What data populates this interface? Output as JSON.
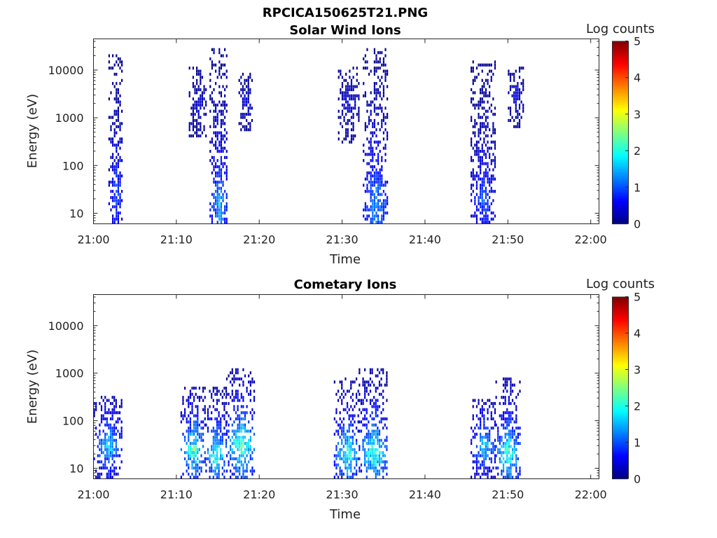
{
  "figure_title": "RPCICA150625T21.PNG",
  "chart_data": [
    {
      "type": "heatmap",
      "title": "Solar Wind Ions",
      "xlabel": "Time",
      "ylabel": "Energy (eV)",
      "x_ticks": [
        "21:00",
        "21:10",
        "21:20",
        "21:30",
        "21:40",
        "21:50",
        "22:00"
      ],
      "y_ticks": [
        "10",
        "100",
        "1000",
        "10000"
      ],
      "y_scale": "log",
      "ylim": [
        6,
        45000
      ],
      "xlim": [
        "21:00",
        "22:01"
      ],
      "colorbar": {
        "label": "Log counts",
        "ticks": [
          "0",
          "1",
          "2",
          "3",
          "4",
          "5"
        ],
        "range": [
          0,
          5
        ],
        "colormap": "jet"
      },
      "bursts": [
        {
          "start_min": 1.8,
          "end_min": 3.5,
          "e_low": 6,
          "e_high": 20000,
          "peak_log_counts": 1.3,
          "core_energy": 25
        },
        {
          "start_min": 11.5,
          "end_min": 13.5,
          "e_low": 400,
          "e_high": 12000,
          "peak_log_counts": 0.6,
          "core_energy": 2000
        },
        {
          "start_min": 14.0,
          "end_min": 16.2,
          "e_low": 6,
          "e_high": 28000,
          "peak_log_counts": 1.9,
          "core_energy": 15
        },
        {
          "start_min": 17.5,
          "end_min": 19.2,
          "e_low": 500,
          "e_high": 9000,
          "peak_log_counts": 0.6,
          "core_energy": 2000
        },
        {
          "start_min": 29.5,
          "end_min": 32.0,
          "e_low": 300,
          "e_high": 12000,
          "peak_log_counts": 0.6,
          "core_energy": 2000
        },
        {
          "start_min": 32.5,
          "end_min": 35.5,
          "e_low": 6,
          "e_high": 28000,
          "peak_log_counts": 1.8,
          "core_energy": 15
        },
        {
          "start_min": 45.5,
          "end_min": 48.5,
          "e_low": 6,
          "e_high": 16000,
          "peak_log_counts": 1.3,
          "core_energy": 20
        },
        {
          "start_min": 50.0,
          "end_min": 51.8,
          "e_low": 600,
          "e_high": 12000,
          "peak_log_counts": 0.6,
          "core_energy": 3000
        }
      ]
    },
    {
      "type": "heatmap",
      "title": "Cometary Ions",
      "xlabel": "Time",
      "ylabel": "Energy (eV)",
      "x_ticks": [
        "21:00",
        "21:10",
        "21:20",
        "21:30",
        "21:40",
        "21:50",
        "22:00"
      ],
      "y_ticks": [
        "10",
        "100",
        "1000",
        "10000"
      ],
      "y_scale": "log",
      "ylim": [
        6,
        45000
      ],
      "xlim": [
        "21:00",
        "22:01"
      ],
      "colorbar": {
        "label": "Log counts",
        "ticks": [
          "0",
          "1",
          "2",
          "3",
          "4",
          "5"
        ],
        "range": [
          0,
          5
        ],
        "colormap": "jet"
      },
      "bursts": [
        {
          "start_min": 0.0,
          "end_min": 3.5,
          "e_low": 6,
          "e_high": 350,
          "peak_log_counts": 2.2,
          "core_energy": 30
        },
        {
          "start_min": 10.5,
          "end_min": 13.5,
          "e_low": 6,
          "e_high": 550,
          "peak_log_counts": 2.9,
          "core_energy": 25
        },
        {
          "start_min": 13.5,
          "end_min": 16.0,
          "e_low": 6,
          "e_high": 500,
          "peak_log_counts": 2.9,
          "core_energy": 20
        },
        {
          "start_min": 16.0,
          "end_min": 19.5,
          "e_low": 6,
          "e_high": 1200,
          "peak_log_counts": 3.0,
          "core_energy": 30
        },
        {
          "start_min": 29.0,
          "end_min": 32.0,
          "e_low": 6,
          "e_high": 800,
          "peak_log_counts": 2.8,
          "core_energy": 20
        },
        {
          "start_min": 32.0,
          "end_min": 35.5,
          "e_low": 6,
          "e_high": 1300,
          "peak_log_counts": 2.9,
          "core_energy": 20
        },
        {
          "start_min": 45.5,
          "end_min": 48.5,
          "e_low": 6,
          "e_high": 300,
          "peak_log_counts": 2.2,
          "core_energy": 30
        },
        {
          "start_min": 48.5,
          "end_min": 51.5,
          "e_low": 6,
          "e_high": 800,
          "peak_log_counts": 2.9,
          "core_energy": 20
        }
      ]
    }
  ]
}
